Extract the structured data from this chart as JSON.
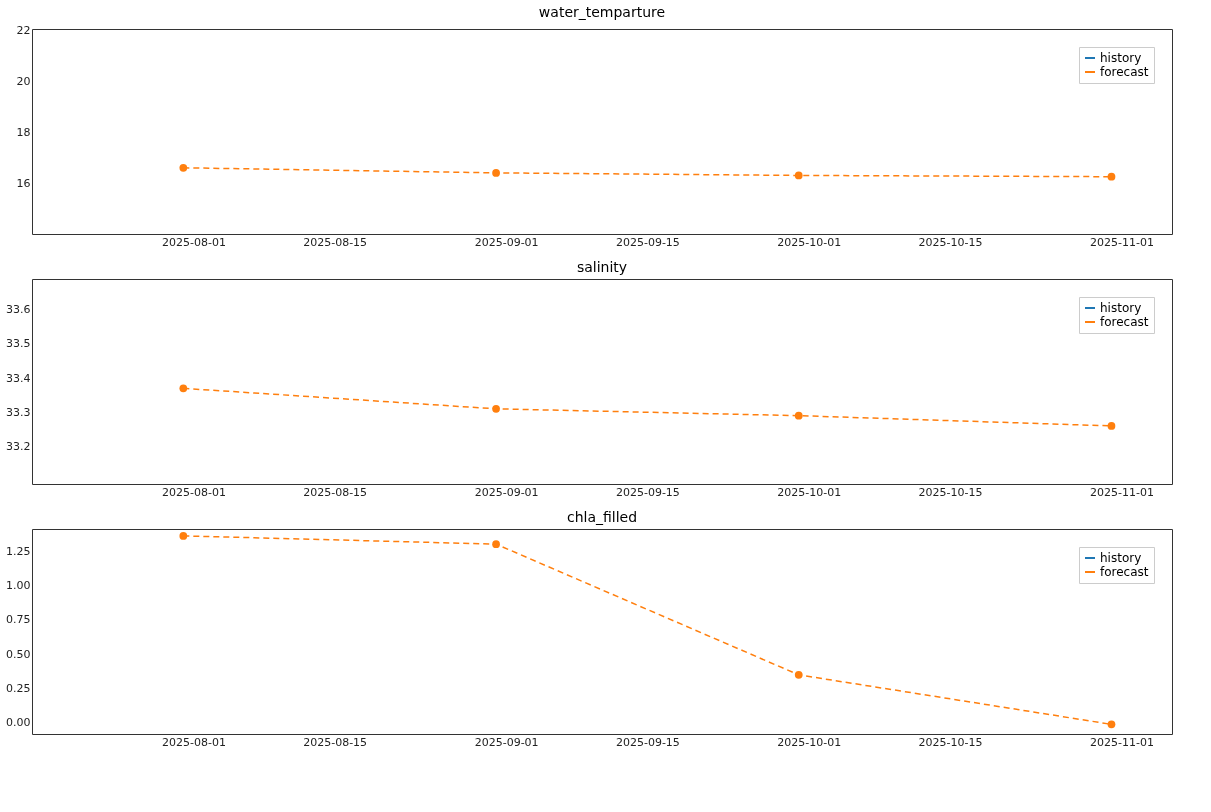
{
  "chart_data": [
    {
      "type": "line",
      "title": "water_temparture",
      "x": [
        "2025-07-31",
        "2025-08-31",
        "2025-09-30",
        "2025-10-31"
      ],
      "series": [
        {
          "name": "history",
          "color": "#1f77b4",
          "values": [
            null,
            null,
            null,
            null
          ],
          "line_style": "solid",
          "marker": "none"
        },
        {
          "name": "forecast",
          "color": "#ff7f0e",
          "values": [
            16.6,
            16.4,
            16.3,
            16.25
          ],
          "line_style": "dashed",
          "marker": "circle"
        }
      ],
      "xlim": [
        "2025-07-16",
        "2025-11-06"
      ],
      "xticks": [
        "2025-08-01",
        "2025-08-15",
        "2025-09-01",
        "2025-09-15",
        "2025-10-01",
        "2025-10-15",
        "2025-11-01"
      ],
      "ylim": [
        14.0,
        22.05
      ],
      "yticks": [
        16,
        18,
        20,
        22
      ],
      "grid": false,
      "legend": "top right"
    },
    {
      "type": "line",
      "title": "salinity",
      "x": [
        "2025-07-31",
        "2025-08-31",
        "2025-09-30",
        "2025-10-31"
      ],
      "series": [
        {
          "name": "history",
          "color": "#1f77b4",
          "values": [
            null,
            null,
            null,
            null
          ],
          "line_style": "solid",
          "marker": "none"
        },
        {
          "name": "forecast",
          "color": "#ff7f0e",
          "values": [
            33.37,
            33.31,
            33.29,
            33.26
          ],
          "line_style": "dashed",
          "marker": "circle"
        }
      ],
      "xlim": [
        "2025-07-16",
        "2025-11-06"
      ],
      "xticks": [
        "2025-08-01",
        "2025-08-15",
        "2025-09-01",
        "2025-09-15",
        "2025-10-01",
        "2025-10-15",
        "2025-11-01"
      ],
      "ylim": [
        33.09,
        33.69
      ],
      "yticks": [
        33.2,
        33.3,
        33.4,
        33.5,
        33.6
      ],
      "grid": false,
      "legend": "top right"
    },
    {
      "type": "line",
      "title": "chla_filled",
      "x": [
        "2025-07-31",
        "2025-08-31",
        "2025-09-30",
        "2025-10-31"
      ],
      "series": [
        {
          "name": "history",
          "color": "#1f77b4",
          "values": [
            null,
            null,
            null,
            null
          ],
          "line_style": "solid",
          "marker": "none"
        },
        {
          "name": "forecast",
          "color": "#ff7f0e",
          "values": [
            1.36,
            1.3,
            0.35,
            -0.01
          ],
          "line_style": "dashed",
          "marker": "circle"
        }
      ],
      "xlim": [
        "2025-07-16",
        "2025-11-06"
      ],
      "xticks": [
        "2025-08-01",
        "2025-08-15",
        "2025-09-01",
        "2025-09-15",
        "2025-10-01",
        "2025-10-15",
        "2025-11-01"
      ],
      "ylim": [
        -0.08,
        1.41
      ],
      "yticks": [
        {
          "value": 0,
          "label": "0.00"
        },
        {
          "value": 0.25,
          "label": "0.25"
        },
        {
          "value": 0.5,
          "label": "0.50"
        },
        {
          "value": 0.75,
          "label": "0.75"
        },
        {
          "value": 1,
          "label": "1.00"
        },
        {
          "value": 1.25,
          "label": "1.25"
        }
      ],
      "grid": false,
      "legend": "top right"
    }
  ]
}
